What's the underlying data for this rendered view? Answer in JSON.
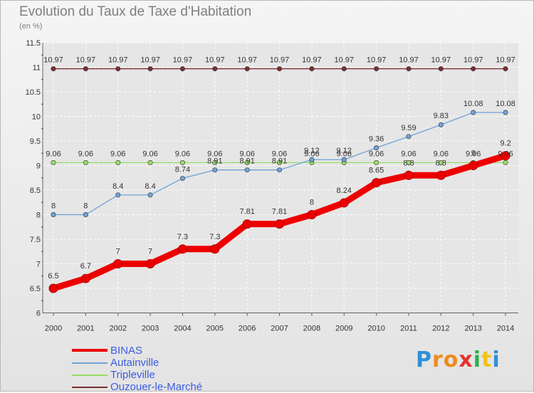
{
  "chart_data": {
    "type": "line",
    "title": "Evolution du Taux de Taxe d'Habitation",
    "ylabel": "(en %)",
    "x": [
      "2000",
      "2001",
      "2002",
      "2003",
      "2004",
      "2005",
      "2006",
      "2007",
      "2008",
      "2009",
      "2010",
      "2011",
      "2012",
      "2013",
      "2014"
    ],
    "ylim": [
      6,
      11.5
    ],
    "yticks": [
      "6",
      "6.5",
      "7",
      "7.5",
      "8",
      "8.5",
      "9",
      "9.5",
      "10",
      "10.5",
      "11",
      "11.5"
    ],
    "grid": true,
    "legend_position": "bottom-left",
    "series": [
      {
        "name": "BINAS",
        "color": "#ee0000",
        "values": [
          6.5,
          6.7,
          7,
          7,
          7.3,
          7.3,
          7.81,
          7.81,
          8,
          8.24,
          8.65,
          8.8,
          8.8,
          9,
          9.2
        ],
        "labels": [
          "6.5",
          "6.7",
          "7",
          "7",
          "7.3",
          "7.3",
          "7.81",
          "7.81",
          "8",
          "8.24",
          "8.65",
          "8.8",
          "8.8",
          "9",
          "9.2"
        ]
      },
      {
        "name": "Autainville",
        "color": "#6fa3d8",
        "values": [
          8,
          8,
          8.4,
          8.4,
          8.74,
          8.91,
          8.91,
          8.91,
          9.12,
          9.12,
          9.36,
          9.59,
          9.83,
          10.08,
          10.08
        ],
        "labels": [
          "8",
          "8",
          "8.4",
          "8.4",
          "8.74",
          "8.91",
          "8.91",
          "8.91",
          "9.12",
          "9.12",
          "9.36",
          "9.59",
          "9.83",
          "10.08",
          "10.08"
        ]
      },
      {
        "name": "Tripleville",
        "color": "#99dd66",
        "values": [
          9.06,
          9.06,
          9.06,
          9.06,
          9.06,
          9.06,
          9.06,
          9.06,
          9.06,
          9.06,
          9.06,
          9.06,
          9.06,
          9.06,
          9.06
        ],
        "labels": [
          "9.06",
          "9.06",
          "9.06",
          "9.06",
          "9.06",
          "9.06",
          "9.06",
          "9.06",
          "9.06",
          "9.06",
          "9.06",
          "9.06",
          "9.06",
          "9.06",
          "9.06"
        ]
      },
      {
        "name": "Ouzouer-le-Marché",
        "color": "#7b2f2f",
        "values": [
          10.97,
          10.97,
          10.97,
          10.97,
          10.97,
          10.97,
          10.97,
          10.97,
          10.97,
          10.97,
          10.97,
          10.97,
          10.97,
          10.97,
          10.97
        ],
        "labels": [
          "10.97",
          "10.97",
          "10.97",
          "10.97",
          "10.97",
          "10.97",
          "10.97",
          "10.97",
          "10.97",
          "10.97",
          "10.97",
          "10.97",
          "10.97",
          "10.97",
          "10.97"
        ]
      }
    ]
  },
  "brand": {
    "letters": [
      "P",
      "r",
      "o",
      "x",
      "i",
      "t",
      "i"
    ],
    "colors": [
      "#2f8fd8",
      "#f08a1c",
      "#f08a1c",
      "#e4322b",
      "#2fae4f",
      "#f0c419",
      "#2f8fd8"
    ]
  }
}
